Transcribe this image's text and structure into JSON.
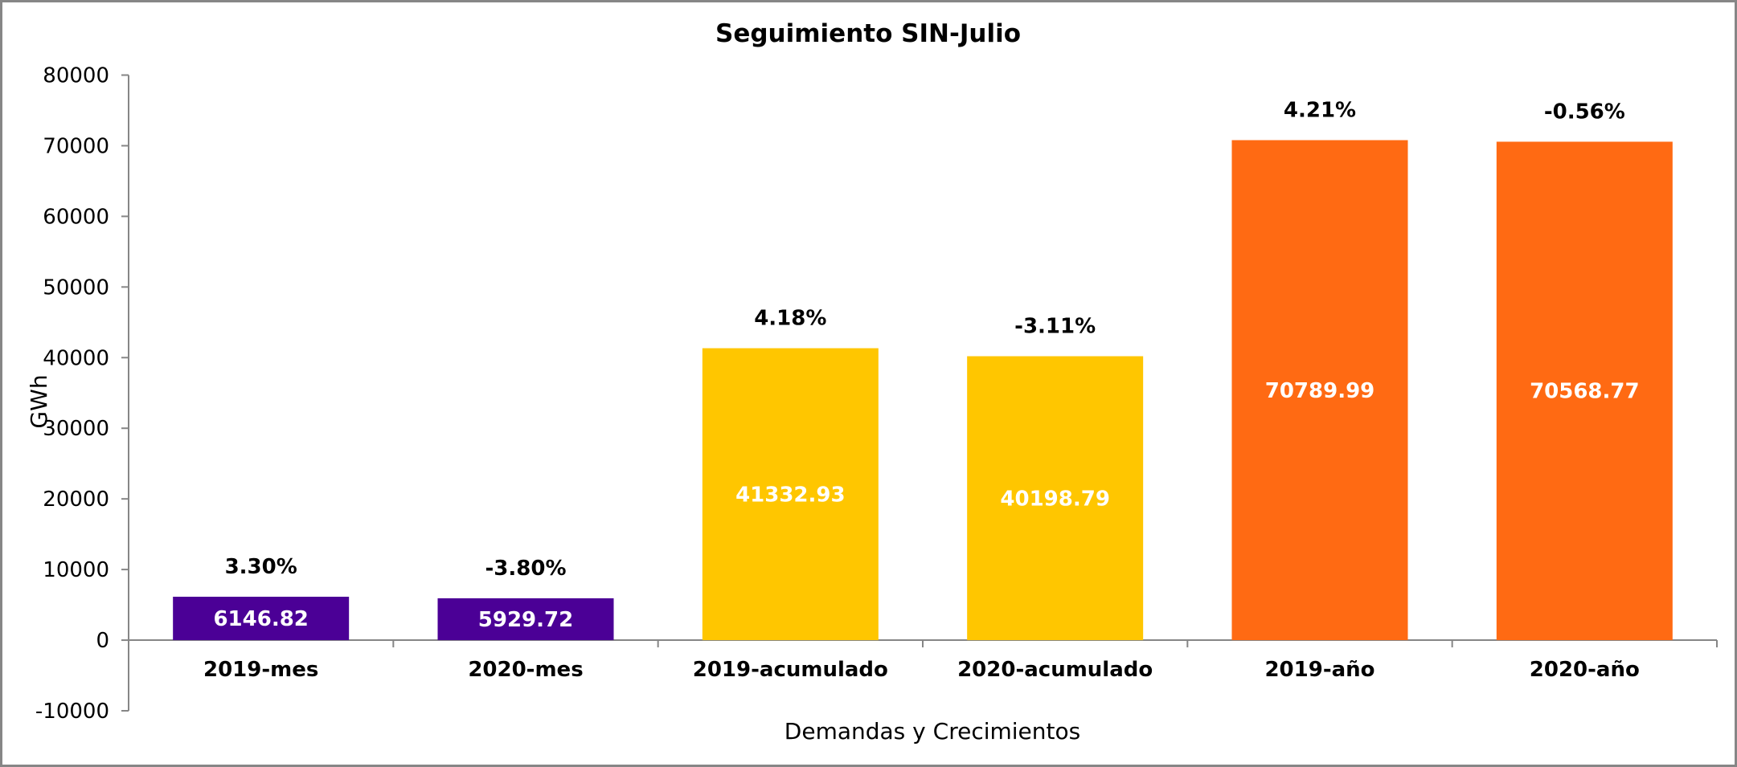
{
  "chart_data": {
    "type": "bar",
    "title": "Seguimiento SIN-Julio",
    "xlabel": "Demandas y Crecimientos",
    "ylabel": "GWh",
    "ylim": [
      -10000,
      80000
    ],
    "yticks": [
      "-10000",
      "0",
      "10000",
      "20000",
      "30000",
      "40000",
      "50000",
      "60000",
      "70000",
      "80000"
    ],
    "grid": false,
    "categories": [
      "2019-mes",
      "2020-mes",
      "2019-acumulado",
      "2020-acumulado",
      "2019-año",
      "2020-año"
    ],
    "values": [
      6146.82,
      5929.72,
      41332.93,
      40198.79,
      70789.99,
      70568.77
    ],
    "value_labels": [
      "6146.82",
      "5929.72",
      "41332.93",
      "40198.79",
      "70789.99",
      "70568.77"
    ],
    "growth_labels": [
      "3.30%",
      "-3.80%",
      "4.18%",
      "-3.11%",
      "4.21%",
      "-0.56%"
    ],
    "colors": [
      "#4B0096",
      "#4B0096",
      "#FFC600",
      "#FFC600",
      "#FF6A13",
      "#FF6A13"
    ],
    "axis_color": "#868686",
    "border_color": "#868686"
  }
}
